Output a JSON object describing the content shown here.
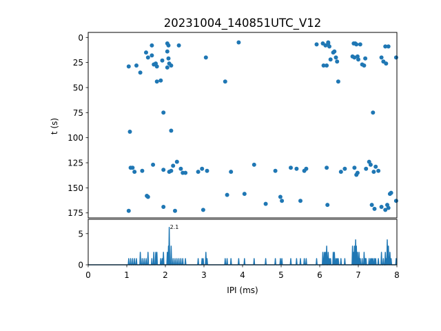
{
  "chart_data": [
    {
      "type": "scatter",
      "title": "20231004_140851UTC_V12",
      "xlabel": "",
      "ylabel": "t (s)",
      "xlim": [
        0,
        8
      ],
      "ylim": [
        180,
        -5
      ],
      "y_inverted": true,
      "yticks": [
        0,
        25,
        50,
        75,
        100,
        125,
        150,
        175
      ],
      "grid": false,
      "color": "#1f77b4",
      "points": [
        [
          1.05,
          29
        ],
        [
          1.08,
          94
        ],
        [
          1.1,
          130
        ],
        [
          1.05,
          173
        ],
        [
          1.15,
          130
        ],
        [
          1.2,
          134
        ],
        [
          1.25,
          28
        ],
        [
          1.35,
          35
        ],
        [
          1.4,
          133
        ],
        [
          1.5,
          15
        ],
        [
          1.55,
          20
        ],
        [
          1.65,
          8
        ],
        [
          1.65,
          18
        ],
        [
          1.52,
          158
        ],
        [
          1.55,
          159
        ],
        [
          1.7,
          27
        ],
        [
          1.75,
          26
        ],
        [
          1.78,
          29
        ],
        [
          1.78,
          44
        ],
        [
          1.68,
          127
        ],
        [
          1.88,
          43
        ],
        [
          1.92,
          23
        ],
        [
          1.95,
          75
        ],
        [
          1.95,
          132
        ],
        [
          1.95,
          169
        ],
        [
          2.05,
          6
        ],
        [
          2.08,
          8
        ],
        [
          2.05,
          14
        ],
        [
          2.08,
          21
        ],
        [
          2.1,
          26
        ],
        [
          2.05,
          30
        ],
        [
          2.1,
          134
        ],
        [
          2.15,
          93
        ],
        [
          2.15,
          133
        ],
        [
          2.2,
          128
        ],
        [
          2.25,
          173
        ],
        [
          2.3,
          124
        ],
        [
          2.35,
          8
        ],
        [
          2.4,
          131
        ],
        [
          2.45,
          135
        ],
        [
          2.52,
          135
        ],
        [
          2.15,
          28
        ],
        [
          2.85,
          134
        ],
        [
          2.95,
          131
        ],
        [
          2.98,
          172
        ],
        [
          3.05,
          20
        ],
        [
          3.08,
          133
        ],
        [
          3.55,
          44
        ],
        [
          3.6,
          157
        ],
        [
          3.7,
          134
        ],
        [
          3.9,
          5
        ],
        [
          4.05,
          156
        ],
        [
          4.3,
          127
        ],
        [
          4.6,
          166
        ],
        [
          4.85,
          133
        ],
        [
          4.98,
          159
        ],
        [
          5.02,
          163
        ],
        [
          5.25,
          130
        ],
        [
          5.4,
          131
        ],
        [
          5.5,
          163
        ],
        [
          5.6,
          133
        ],
        [
          5.65,
          131
        ],
        [
          5.92,
          7
        ],
        [
          6.08,
          6
        ],
        [
          6.1,
          28
        ],
        [
          6.15,
          8
        ],
        [
          6.18,
          28
        ],
        [
          6.22,
          5
        ],
        [
          6.22,
          6
        ],
        [
          6.25,
          9
        ],
        [
          6.28,
          22
        ],
        [
          6.35,
          15
        ],
        [
          6.38,
          14
        ],
        [
          6.42,
          20
        ],
        [
          6.45,
          24
        ],
        [
          6.48,
          44
        ],
        [
          6.18,
          130
        ],
        [
          6.2,
          167
        ],
        [
          6.55,
          134
        ],
        [
          6.65,
          131
        ],
        [
          6.85,
          19
        ],
        [
          6.88,
          6
        ],
        [
          6.9,
          20
        ],
        [
          6.92,
          6
        ],
        [
          6.95,
          7
        ],
        [
          6.98,
          19
        ],
        [
          7.0,
          22
        ],
        [
          7.05,
          7
        ],
        [
          7.1,
          27
        ],
        [
          7.15,
          28
        ],
        [
          7.18,
          21
        ],
        [
          6.9,
          130
        ],
        [
          6.95,
          137
        ],
        [
          6.98,
          135
        ],
        [
          7.2,
          131
        ],
        [
          7.28,
          124
        ],
        [
          7.32,
          127
        ],
        [
          7.35,
          167
        ],
        [
          7.38,
          75
        ],
        [
          7.4,
          134
        ],
        [
          7.42,
          171
        ],
        [
          7.45,
          129
        ],
        [
          7.52,
          133
        ],
        [
          7.6,
          20
        ],
        [
          7.65,
          24
        ],
        [
          7.7,
          9
        ],
        [
          7.72,
          26
        ],
        [
          7.78,
          9
        ],
        [
          7.6,
          169
        ],
        [
          7.7,
          172
        ],
        [
          7.75,
          167
        ],
        [
          7.78,
          170
        ],
        [
          7.82,
          156
        ],
        [
          7.85,
          155
        ],
        [
          7.98,
          20
        ],
        [
          7.98,
          163
        ]
      ]
    },
    {
      "type": "line",
      "title": "",
      "xlabel": "IPI (ms)",
      "ylabel": "",
      "xlim": [
        0,
        8
      ],
      "ylim": [
        0,
        7.3
      ],
      "xticks": [
        0,
        1,
        2,
        3,
        4,
        5,
        6,
        7,
        8
      ],
      "yticks": [
        0,
        5
      ],
      "grid": false,
      "color": "#1f77b4",
      "annotation": {
        "x": 2.1,
        "y": 6,
        "text": "2.1"
      },
      "peaks": [
        [
          1.05,
          1
        ],
        [
          1.1,
          1
        ],
        [
          1.15,
          1
        ],
        [
          1.2,
          1
        ],
        [
          1.25,
          1
        ],
        [
          1.35,
          2
        ],
        [
          1.4,
          1
        ],
        [
          1.45,
          1
        ],
        [
          1.5,
          1
        ],
        [
          1.55,
          2
        ],
        [
          1.65,
          1
        ],
        [
          1.7,
          2
        ],
        [
          1.75,
          2
        ],
        [
          1.78,
          2
        ],
        [
          1.88,
          1
        ],
        [
          1.92,
          1
        ],
        [
          1.95,
          2
        ],
        [
          2.05,
          2
        ],
        [
          2.08,
          3
        ],
        [
          2.1,
          6
        ],
        [
          2.15,
          3
        ],
        [
          2.2,
          1
        ],
        [
          2.25,
          1
        ],
        [
          2.3,
          1
        ],
        [
          2.35,
          1
        ],
        [
          2.4,
          1
        ],
        [
          2.45,
          1
        ],
        [
          2.52,
          1
        ],
        [
          2.85,
          1
        ],
        [
          2.95,
          1
        ],
        [
          2.98,
          1
        ],
        [
          3.05,
          2
        ],
        [
          3.08,
          1
        ],
        [
          3.55,
          1
        ],
        [
          3.6,
          1
        ],
        [
          3.7,
          1
        ],
        [
          3.9,
          1
        ],
        [
          4.05,
          1
        ],
        [
          4.3,
          1
        ],
        [
          4.6,
          1
        ],
        [
          4.85,
          1
        ],
        [
          4.98,
          1
        ],
        [
          5.02,
          1
        ],
        [
          5.25,
          1
        ],
        [
          5.4,
          1
        ],
        [
          5.5,
          1
        ],
        [
          5.6,
          1
        ],
        [
          5.65,
          1
        ],
        [
          5.92,
          1
        ],
        [
          6.08,
          2
        ],
        [
          6.12,
          2
        ],
        [
          6.15,
          2
        ],
        [
          6.18,
          3
        ],
        [
          6.22,
          2
        ],
        [
          6.25,
          1
        ],
        [
          6.28,
          1
        ],
        [
          6.35,
          2
        ],
        [
          6.38,
          2
        ],
        [
          6.42,
          1
        ],
        [
          6.45,
          1
        ],
        [
          6.48,
          1
        ],
        [
          6.55,
          1
        ],
        [
          6.65,
          1
        ],
        [
          6.85,
          3
        ],
        [
          6.88,
          2
        ],
        [
          6.9,
          3
        ],
        [
          6.93,
          4
        ],
        [
          6.95,
          3
        ],
        [
          6.98,
          2
        ],
        [
          7.02,
          2
        ],
        [
          7.05,
          1
        ],
        [
          7.1,
          1
        ],
        [
          7.15,
          2
        ],
        [
          7.18,
          1
        ],
        [
          7.2,
          1
        ],
        [
          7.28,
          1
        ],
        [
          7.32,
          1
        ],
        [
          7.35,
          1
        ],
        [
          7.38,
          1
        ],
        [
          7.42,
          1
        ],
        [
          7.45,
          1
        ],
        [
          7.52,
          1
        ],
        [
          7.6,
          2
        ],
        [
          7.65,
          1
        ],
        [
          7.7,
          2
        ],
        [
          7.72,
          1
        ],
        [
          7.75,
          4
        ],
        [
          7.78,
          3
        ],
        [
          7.82,
          2
        ],
        [
          7.85,
          1
        ],
        [
          7.98,
          1
        ]
      ]
    }
  ]
}
